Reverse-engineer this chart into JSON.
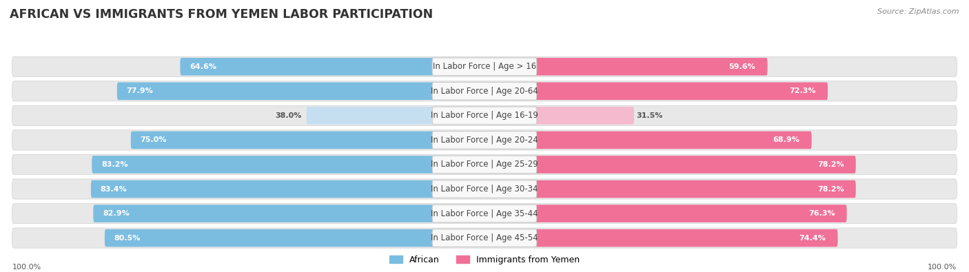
{
  "title": "AFRICAN VS IMMIGRANTS FROM YEMEN LABOR PARTICIPATION",
  "source": "Source: ZipAtlas.com",
  "categories": [
    "In Labor Force | Age > 16",
    "In Labor Force | Age 20-64",
    "In Labor Force | Age 16-19",
    "In Labor Force | Age 20-24",
    "In Labor Force | Age 25-29",
    "In Labor Force | Age 30-34",
    "In Labor Force | Age 35-44",
    "In Labor Force | Age 45-54"
  ],
  "african_values": [
    64.6,
    77.9,
    38.0,
    75.0,
    83.2,
    83.4,
    82.9,
    80.5
  ],
  "yemen_values": [
    59.6,
    72.3,
    31.5,
    68.9,
    78.2,
    78.2,
    76.3,
    74.4
  ],
  "african_color": "#7bbde0",
  "african_color_light": "#c5dff0",
  "yemen_color": "#f07098",
  "yemen_color_light": "#f5bace",
  "row_bg_color": "#e8e8e8",
  "label_bg_color": "#f5f5f5",
  "max_val": 100.0,
  "legend_african": "African",
  "legend_yemen": "Immigrants from Yemen",
  "title_fontsize": 12.5,
  "label_fontsize": 8.5,
  "value_fontsize": 8.0,
  "axis_label_fontsize": 8,
  "background_color": "#ffffff"
}
